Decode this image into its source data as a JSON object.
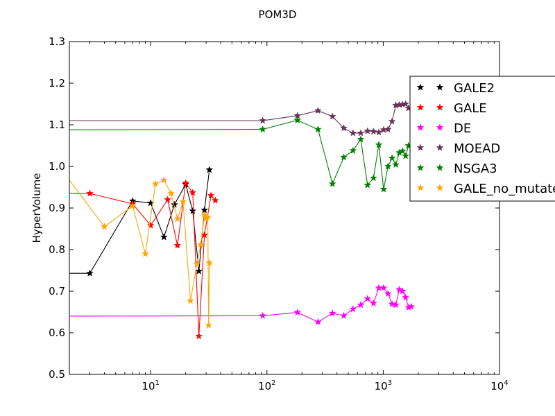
{
  "chart_data": {
    "type": "line",
    "title": "POM3D",
    "xlabel": "",
    "ylabel": "HyperVolume",
    "xscale": "log",
    "xlim": [
      2,
      10000
    ],
    "ylim": [
      0.5,
      1.3
    ],
    "yticks": [
      "0.5",
      "0.6",
      "0.7",
      "0.8",
      "0.9",
      "1.0",
      "1.1",
      "1.2",
      "1.3"
    ],
    "ytick_values": [
      0.5,
      0.6,
      0.7,
      0.8,
      0.9,
      1.0,
      1.1,
      1.2,
      1.3
    ],
    "xtick_exponents": [
      "1",
      "2",
      "3",
      "4"
    ],
    "xtick_base": "10",
    "legend_position": "upper-right (partially clipped)",
    "series": [
      {
        "name": "GALE2",
        "color": "#000000",
        "x": [
          2,
          3,
          7,
          10,
          13,
          16,
          20,
          23,
          26,
          29,
          32
        ],
        "y": [
          0.743,
          0.743,
          0.917,
          0.912,
          0.83,
          0.908,
          0.957,
          0.893,
          0.748,
          0.895,
          0.992
        ]
      },
      {
        "name": "GALE",
        "color": "#ff0000",
        "x": [
          2,
          3,
          7,
          10,
          14,
          17,
          20,
          23,
          26,
          29,
          33,
          36
        ],
        "y": [
          0.935,
          0.935,
          0.91,
          0.858,
          0.92,
          0.81,
          0.96,
          0.937,
          0.592,
          0.835,
          0.93,
          0.918
        ]
      },
      {
        "name": "DE",
        "color": "#ff00ff",
        "x": [
          2,
          92,
          183,
          275,
          366,
          458,
          550,
          641,
          733,
          825,
          916,
          1008,
          1100,
          1191,
          1283,
          1375,
          1466,
          1558,
          1650,
          1741
        ],
        "y": [
          0.64,
          0.641,
          0.649,
          0.626,
          0.647,
          0.641,
          0.657,
          0.667,
          0.682,
          0.671,
          0.708,
          0.708,
          0.694,
          0.669,
          0.667,
          0.704,
          0.7,
          0.685,
          0.661,
          0.663
        ]
      },
      {
        "name": "MOEAD",
        "color": "#663355",
        "x": [
          2,
          92,
          183,
          275,
          366,
          458,
          550,
          641,
          733,
          825,
          916,
          1008,
          1100,
          1191,
          1283,
          1375,
          1466,
          1558,
          1650
        ],
        "y": [
          1.11,
          1.11,
          1.122,
          1.134,
          1.12,
          1.092,
          1.08,
          1.08,
          1.085,
          1.084,
          1.082,
          1.088,
          1.089,
          1.108,
          1.147,
          1.148,
          1.149,
          1.15,
          1.14
        ]
      },
      {
        "name": "NSGA3",
        "color": "#008000",
        "x": [
          2,
          92,
          183,
          275,
          366,
          458,
          550,
          641,
          733,
          825,
          916,
          1008,
          1100,
          1191,
          1283,
          1375,
          1466,
          1558,
          1650
        ],
        "y": [
          1.088,
          1.089,
          1.111,
          1.089,
          0.958,
          1.022,
          1.038,
          1.065,
          0.955,
          0.972,
          1.052,
          0.945,
          1.0,
          1.02,
          1.004,
          1.033,
          1.037,
          1.025,
          1.05
        ]
      },
      {
        "name": "GALE_no_mutate",
        "color": "#ffa500",
        "x": [
          2,
          4,
          7,
          9,
          11,
          13,
          15,
          17,
          19,
          22,
          25,
          27,
          29,
          30,
          31,
          31.5,
          32
        ],
        "y": [
          0.967,
          0.855,
          0.905,
          0.79,
          0.958,
          0.967,
          0.935,
          0.874,
          0.915,
          0.677,
          0.766,
          0.812,
          0.883,
          0.875,
          0.878,
          0.618,
          0.768
        ]
      }
    ]
  }
}
